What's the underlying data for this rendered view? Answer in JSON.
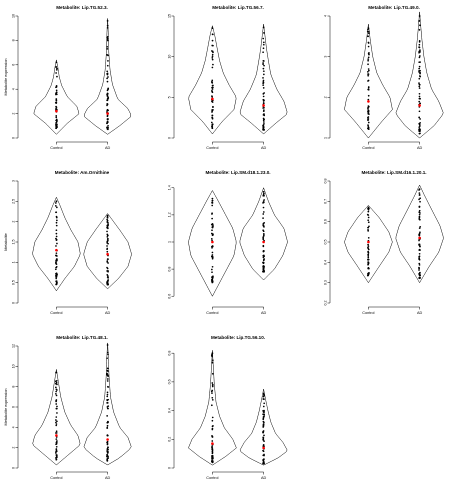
{
  "figure": {
    "layout": "3x3 grid, 8 panels",
    "style": {
      "background": "#ffffff",
      "violin_stroke": "#000000",
      "point_color": "#000000",
      "median_color": "#ff0000"
    }
  },
  "chart_data": [
    {
      "type": "violin",
      "title": "Metabolite: Lip.TG.52.3.",
      "ylabel": "Metabolite expression",
      "categories": [
        "Control",
        "AD"
      ],
      "yticks": [
        0,
        2,
        4,
        6,
        8,
        10
      ],
      "ylim": [
        0,
        10
      ],
      "medians": [
        2.2,
        2.0
      ],
      "series": [
        {
          "name": "Control",
          "density": {
            "at": [
              0.3,
              1.2,
              2.0,
              2.6,
              3.4,
              4.3,
              5.0,
              5.8,
              6.4
            ],
            "width": [
              0.0,
              0.45,
              0.95,
              0.85,
              0.45,
              0.22,
              0.12,
              0.06,
              0.0
            ]
          },
          "points": {
            "min": 0.8,
            "max": 6.2,
            "n": 55
          }
        },
        {
          "name": "AD",
          "density": {
            "at": [
              0.3,
              1.0,
              1.8,
              2.4,
              3.2,
              4.4,
              5.6,
              7.0,
              8.5,
              9.8
            ],
            "width": [
              0.0,
              0.5,
              1.0,
              0.85,
              0.42,
              0.2,
              0.1,
              0.05,
              0.03,
              0.0
            ]
          },
          "points": {
            "min": 0.7,
            "max": 9.6,
            "n": 65
          }
        }
      ]
    },
    {
      "type": "violin",
      "title": "Metabolite: Lip.TG.56.7.",
      "ylabel": "",
      "categories": [
        "Control",
        "AD"
      ],
      "yticks": [
        0,
        5,
        10,
        15
      ],
      "ylim": [
        0,
        15
      ],
      "medians": [
        4.8,
        4.0
      ],
      "series": [
        {
          "name": "Control",
          "density": {
            "at": [
              0.5,
              2.0,
              3.5,
              5.0,
              6.5,
              8.0,
              9.5,
              11.0,
              12.6,
              13.8
            ],
            "width": [
              0.0,
              0.4,
              0.9,
              1.0,
              0.7,
              0.45,
              0.3,
              0.2,
              0.1,
              0.0
            ]
          },
          "points": {
            "min": 1.2,
            "max": 13.5,
            "n": 55
          }
        },
        {
          "name": "AD",
          "density": {
            "at": [
              0.5,
              1.8,
              3.0,
              4.5,
              6.0,
              7.8,
              9.5,
              11.0,
              12.5,
              14.0
            ],
            "width": [
              0.0,
              0.5,
              1.0,
              0.85,
              0.55,
              0.3,
              0.2,
              0.12,
              0.06,
              0.0
            ]
          },
          "points": {
            "min": 1.0,
            "max": 13.6,
            "n": 65
          }
        }
      ]
    },
    {
      "type": "violin",
      "title": "Metabolite: Lip.TG.49.0.",
      "ylabel": "",
      "categories": [
        "Control",
        "AD"
      ],
      "yticks": [
        1,
        2,
        3,
        4
      ],
      "ylim": [
        1,
        4
      ],
      "medians": [
        1.9,
        1.8
      ],
      "series": [
        {
          "name": "Control",
          "density": {
            "at": [
              1.0,
              1.4,
              1.7,
              2.0,
              2.3,
              2.6,
              3.0,
              3.4,
              3.8
            ],
            "width": [
              0.0,
              0.55,
              1.0,
              0.9,
              0.6,
              0.35,
              0.18,
              0.08,
              0.0
            ]
          },
          "points": {
            "min": 1.2,
            "max": 3.7,
            "n": 55
          }
        },
        {
          "name": "AD",
          "density": {
            "at": [
              1.0,
              1.3,
              1.6,
              1.9,
              2.2,
              2.6,
              3.0,
              3.4,
              3.8,
              4.1
            ],
            "width": [
              0.0,
              0.6,
              1.0,
              0.8,
              0.5,
              0.3,
              0.18,
              0.1,
              0.04,
              0.0
            ]
          },
          "points": {
            "min": 1.1,
            "max": 4.0,
            "n": 65
          }
        }
      ]
    },
    {
      "type": "violin",
      "title": "Metabolite: Am.Ornithine",
      "ylabel": "Metabolite",
      "categories": [
        "Control",
        "AD"
      ],
      "yticks": [
        0.0,
        0.5,
        1.0,
        1.5,
        2.0,
        2.5,
        3.0
      ],
      "ylim": [
        0.0,
        3.0
      ],
      "medians": [
        1.3,
        1.2
      ],
      "series": [
        {
          "name": "Control",
          "density": {
            "at": [
              0.3,
              0.6,
              0.9,
              1.2,
              1.5,
              1.8,
              2.1,
              2.4,
              2.6
            ],
            "width": [
              0.0,
              0.35,
              0.75,
              1.0,
              0.9,
              0.6,
              0.35,
              0.15,
              0.0
            ]
          },
          "points": {
            "min": 0.45,
            "max": 2.5,
            "n": 55
          }
        },
        {
          "name": "AD",
          "density": {
            "at": [
              0.35,
              0.6,
              0.9,
              1.2,
              1.5,
              1.8,
              2.0,
              2.2
            ],
            "width": [
              0.0,
              0.45,
              0.85,
              1.0,
              0.85,
              0.5,
              0.25,
              0.0
            ]
          },
          "points": {
            "min": 0.45,
            "max": 2.15,
            "n": 65
          }
        }
      ]
    },
    {
      "type": "violin",
      "title": "Metabolite: Lip.SM.d18.1.23.0.",
      "ylabel": "",
      "categories": [
        "Control",
        "AD"
      ],
      "yticks": [
        0.6,
        0.8,
        1.0,
        1.2,
        1.4
      ],
      "ylim": [
        0.55,
        1.45
      ],
      "medians": [
        1.0,
        1.0
      ],
      "series": [
        {
          "name": "Control",
          "density": {
            "at": [
              0.6,
              0.7,
              0.8,
              0.9,
              1.0,
              1.1,
              1.2,
              1.3,
              1.38
            ],
            "width": [
              0.0,
              0.3,
              0.6,
              0.9,
              1.0,
              0.85,
              0.55,
              0.25,
              0.0
            ]
          },
          "points": {
            "min": 0.7,
            "max": 1.32,
            "n": 55
          }
        },
        {
          "name": "AD",
          "density": {
            "at": [
              0.72,
              0.8,
              0.9,
              1.0,
              1.1,
              1.2,
              1.3,
              1.4
            ],
            "width": [
              0.0,
              0.45,
              0.8,
              1.0,
              0.85,
              0.45,
              0.2,
              0.0
            ]
          },
          "points": {
            "min": 0.78,
            "max": 1.37,
            "n": 65
          }
        }
      ]
    },
    {
      "type": "violin",
      "title": "Metabolite: Lip.SM.d16.1.20.1.",
      "ylabel": "",
      "categories": [
        "Control",
        "AD"
      ],
      "yticks": [
        0.2,
        0.3,
        0.4,
        0.5,
        0.6,
        0.7,
        0.8
      ],
      "ylim": [
        0.2,
        0.8
      ],
      "medians": [
        0.5,
        0.52
      ],
      "series": [
        {
          "name": "Control",
          "density": {
            "at": [
              0.3,
              0.38,
              0.45,
              0.5,
              0.55,
              0.62,
              0.68
            ],
            "width": [
              0.0,
              0.45,
              0.85,
              1.0,
              0.85,
              0.45,
              0.0
            ]
          },
          "points": {
            "min": 0.33,
            "max": 0.67,
            "n": 55
          }
        },
        {
          "name": "AD",
          "density": {
            "at": [
              0.3,
              0.38,
              0.45,
              0.52,
              0.58,
              0.66,
              0.73,
              0.78
            ],
            "width": [
              0.0,
              0.4,
              0.8,
              1.0,
              0.85,
              0.5,
              0.2,
              0.0
            ]
          },
          "points": {
            "min": 0.32,
            "max": 0.76,
            "n": 65
          }
        }
      ]
    },
    {
      "type": "violin",
      "title": "Metabolite: Lip.TG.48.1.",
      "ylabel": "Metabolite expression",
      "categories": [
        "Control",
        "AD"
      ],
      "yticks": [
        0,
        2,
        4,
        6,
        8,
        10,
        12
      ],
      "ylim": [
        0,
        12
      ],
      "medians": [
        3.2,
        2.8
      ],
      "series": [
        {
          "name": "Control",
          "density": {
            "at": [
              0.3,
              1.2,
              2.3,
              3.2,
              4.2,
              5.5,
              7.0,
              8.5,
              9.7
            ],
            "width": [
              0.0,
              0.45,
              1.0,
              0.9,
              0.6,
              0.35,
              0.18,
              0.08,
              0.0
            ]
          },
          "points": {
            "min": 0.8,
            "max": 9.4,
            "n": 55
          }
        },
        {
          "name": "AD",
          "density": {
            "at": [
              0.3,
              1.0,
              2.0,
              3.0,
              4.0,
              5.5,
              7.0,
              9.0,
              11.0,
              12.3
            ],
            "width": [
              0.0,
              0.5,
              1.0,
              0.85,
              0.5,
              0.25,
              0.12,
              0.06,
              0.03,
              0.0
            ]
          },
          "points": {
            "min": 0.7,
            "max": 12.1,
            "n": 65
          }
        }
      ]
    },
    {
      "type": "violin",
      "title": "Metabolite: Lip.TG.56.10.",
      "ylabel": "",
      "categories": [
        "Control",
        "AD"
      ],
      "yticks": [
        0.0,
        0.2,
        0.4,
        0.6,
        0.8
      ],
      "ylim": [
        0.0,
        0.85
      ],
      "medians": [
        0.17,
        0.14
      ],
      "series": [
        {
          "name": "Control",
          "density": {
            "at": [
              0.02,
              0.08,
              0.14,
              0.2,
              0.28,
              0.36,
              0.46,
              0.58,
              0.7,
              0.82
            ],
            "width": [
              0.0,
              0.55,
              1.0,
              0.85,
              0.5,
              0.3,
              0.15,
              0.08,
              0.04,
              0.0
            ]
          },
          "points": {
            "min": 0.04,
            "max": 0.8,
            "n": 55
          }
        },
        {
          "name": "AD",
          "density": {
            "at": [
              0.02,
              0.07,
              0.12,
              0.18,
              0.24,
              0.32,
              0.4,
              0.48,
              0.55
            ],
            "width": [
              0.0,
              0.6,
              1.0,
              0.8,
              0.5,
              0.3,
              0.18,
              0.08,
              0.0
            ]
          },
          "points": {
            "min": 0.03,
            "max": 0.52,
            "n": 65
          }
        }
      ]
    }
  ]
}
